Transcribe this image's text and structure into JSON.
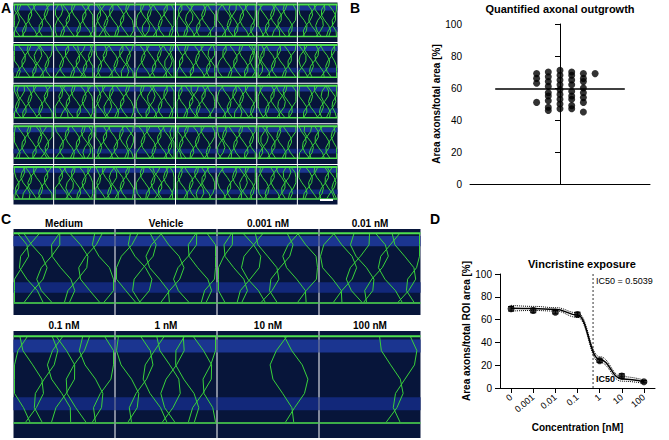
{
  "panel_labels": [
    "A",
    "B",
    "C",
    "D"
  ],
  "panel_C": {
    "labels": [
      "Medium",
      "Vehicle",
      "0.001 nM",
      "0.01 nM",
      "0.1 nM",
      "1 nM",
      "10 nM",
      "100 nM"
    ]
  },
  "chart_data": [
    {
      "type": "scatter",
      "title": "Quantified axonal outgrowth",
      "y_label": "Area axons/total area [%]",
      "values": [
        71,
        70,
        70,
        69,
        69,
        69,
        68,
        68,
        67,
        66,
        66,
        65,
        65,
        64,
        64,
        63,
        62,
        62,
        61,
        60,
        59,
        58,
        57,
        57,
        56,
        55,
        55,
        54,
        53,
        53,
        52,
        51,
        51,
        50,
        49,
        48,
        47,
        47,
        46,
        45
      ],
      "mean": 59.5,
      "color": "#000000",
      "marker": "circle",
      "ylim": [
        0,
        100
      ],
      "yticks": [
        0,
        20,
        40,
        60,
        80,
        100
      ],
      "tick_labels": "y",
      "grid": false
    },
    {
      "type": "line",
      "title": "Vincristine exposure",
      "x_label": "Concentration [nM]",
      "y_label": "Area axons/total ROI area [%]",
      "categories": [
        "0",
        "0.001",
        "0.01",
        "0.1",
        "1",
        "10",
        "100"
      ],
      "series": [
        {
          "type": "scatter",
          "values": [
            69.5,
            68,
            66.5,
            64.5,
            24,
            10.5,
            5.5
          ],
          "errors": [
            2,
            2,
            1.5,
            2,
            1.5,
            2,
            1
          ],
          "marker": "circle",
          "color": "#000000"
        },
        {
          "type": "line",
          "values": [
            70.0,
            69.8,
            69.0,
            64.0,
            25.0,
            8.0,
            5.5
          ],
          "line_style": "solid",
          "color": "#000000"
        },
        {
          "type": "line",
          "values": [
            67.5,
            68.0,
            67.5,
            62.0,
            22.5,
            6.0,
            4.0
          ],
          "line_style": "dotted",
          "color": "#000000"
        },
        {
          "type": "line",
          "values": [
            72.5,
            71.6,
            70.5,
            66.0,
            27.5,
            10.0,
            7.0
          ],
          "line_style": "dotted",
          "color": "#000000"
        }
      ],
      "ic50": 0.5039,
      "ic50_label": "IC50 = 0.5039",
      "ic50_marker": "IC50",
      "ylim": [
        0,
        100
      ],
      "yticks": [
        0,
        20,
        40,
        60,
        80,
        100
      ],
      "grid": false
    }
  ]
}
